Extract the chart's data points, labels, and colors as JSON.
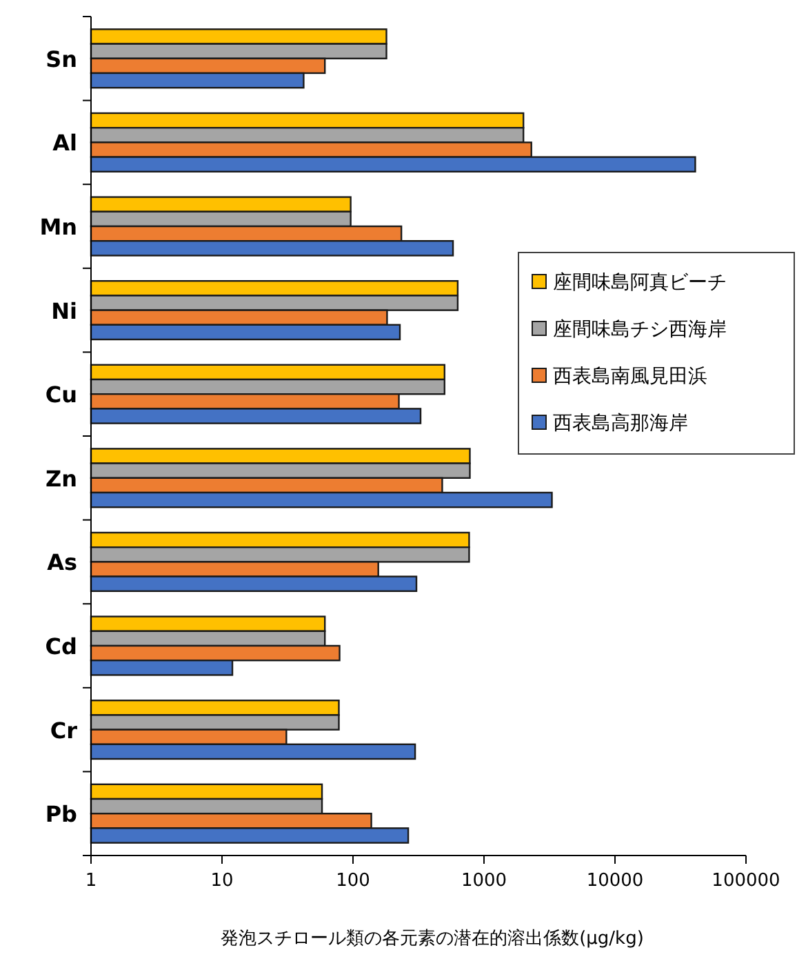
{
  "chart_data": {
    "type": "bar",
    "orientation": "horizontal",
    "log": "x",
    "xlabel": "発泡スチロール類の各元素の潜在的溶出係数(μg/kg)",
    "categories": [
      "Sn",
      "Al",
      "Mn",
      "Ni",
      "Cu",
      "Zn",
      "As",
      "Cd",
      "Cr",
      "Pb"
    ],
    "series": [
      {
        "name": "座間味島阿真ビーチ",
        "color": "#ffc000",
        "values": [
          180,
          2000,
          96,
          630,
          500,
          780,
          770,
          61,
          78,
          58
        ]
      },
      {
        "name": "座間味島チシ西海岸",
        "color": "#a5a5a5",
        "values": [
          180,
          2000,
          96,
          630,
          500,
          780,
          770,
          61,
          78,
          58
        ]
      },
      {
        "name": "西表島南風見田浜",
        "color": "#ed7d31",
        "values": [
          61,
          2300,
          234,
          182,
          224,
          480,
          156,
          79,
          31,
          138
        ]
      },
      {
        "name": "西表島高那海岸",
        "color": "#4472c4",
        "values": [
          42,
          41000,
          580,
          228,
          328,
          3300,
          305,
          12,
          298,
          264
        ]
      }
    ],
    "xlim": [
      1,
      100000
    ],
    "xticks": [
      1,
      10,
      100,
      1000,
      10000,
      100000
    ],
    "grid": false,
    "legend": "right"
  }
}
